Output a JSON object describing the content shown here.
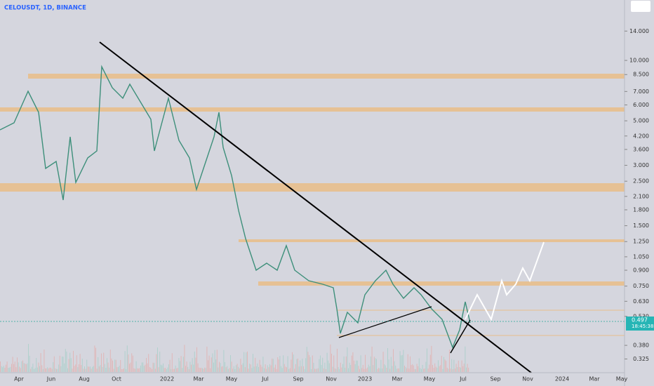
{
  "header": {
    "symbol": "CELOUSDT, 1D, BINANCE"
  },
  "price_axis": {
    "log": true,
    "ylim": [
      0.28,
      20
    ],
    "ticks": [
      {
        "value": 14,
        "label": "14.000"
      },
      {
        "value": 10,
        "label": "10.000"
      },
      {
        "value": 8.5,
        "label": "8.500"
      },
      {
        "value": 7,
        "label": "7.000"
      },
      {
        "value": 6,
        "label": "6.000"
      },
      {
        "value": 5,
        "label": "5.000"
      },
      {
        "value": 4.2,
        "label": "4.200"
      },
      {
        "value": 3.6,
        "label": "3.600"
      },
      {
        "value": 3,
        "label": "3.000"
      },
      {
        "value": 2.5,
        "label": "2.500"
      },
      {
        "value": 2.1,
        "label": "2.100"
      },
      {
        "value": 1.8,
        "label": "1.800"
      },
      {
        "value": 1.5,
        "label": "1.500"
      },
      {
        "value": 1.25,
        "label": "1.250"
      },
      {
        "value": 1.05,
        "label": "1.050"
      },
      {
        "value": 0.9,
        "label": "0.900"
      },
      {
        "value": 0.75,
        "label": "0.750"
      },
      {
        "value": 0.63,
        "label": "0.630"
      },
      {
        "value": 0.53,
        "label": "0.530"
      },
      {
        "value": 0.38,
        "label": "0.380"
      },
      {
        "value": 0.325,
        "label": "0.325"
      }
    ]
  },
  "time_axis": {
    "labels": [
      "Apr",
      "Jun",
      "Aug",
      "Oct",
      "2022",
      "Mar",
      "May",
      "Jul",
      "Sep",
      "Nov",
      "2023",
      "Mar",
      "May",
      "Jul",
      "Sep",
      "Nov",
      "2024",
      "Mar",
      "May"
    ]
  },
  "last_price": {
    "price": "0.497",
    "countdown": "18:45:38"
  }
}
